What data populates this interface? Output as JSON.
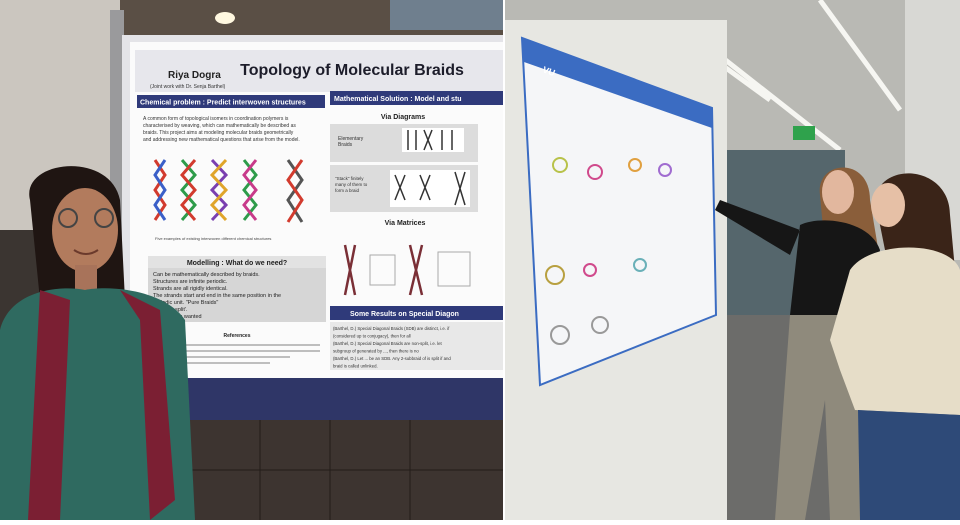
{
  "left_photo": {
    "poster": {
      "author": "Riya Dogra",
      "coauthor": "(Joint work with Dr. Senja Barthel)",
      "title": "Topology of Molecular Braids",
      "problem_heading": "Chemical problem : Predict interwoven structures",
      "solution_heading": "Mathematical Solution : Model and stu",
      "intro_lines": [
        "A common form of topological isomers in coordination polymers is",
        "characterised by weaving, which can mathematically be described as",
        "braids. This project aims at modeling molecular braids geometrically",
        "and addressing new mathematical questions that arise from the model."
      ],
      "braid_caption": "Five examples of existing interwoven different chemical structures",
      "via_diagrams": "Via Diagrams",
      "elementary_braids": [
        "Elementary",
        "Braids"
      ],
      "stack_text": [
        "\"Stack\" finitely",
        "many of them to",
        "form a braid"
      ],
      "via_matrices": "Via Matrices",
      "modelling_heading": "Modelling : What do we need?",
      "modelling_points": [
        "Can be mathematically described by braids.",
        "Structures are infinite periodic.",
        "Strands are all rigidly identical.",
        "The strands start and end in the same position in the",
        "periodic unit. \"Pure Braids\"",
        "Are 'non-split'.",
        "symmetry is wanted"
      ],
      "references_heading": "References",
      "results_heading": "Some Results on Special Diagon",
      "results_lines": [
        "(Barthel, D.) Special Diagonal Braids (SDB) are distinct, i.e. if",
        "(considered up to conjugacy), then for all",
        "(Barthel, D.) Special Diagonal Braids are non-split, i.e. let",
        "subgroup of generated by ..., then there is no",
        "(Barthel, D.) Let ... be an SDB. Any 2-subbraid of is split if and",
        "braid is called unlinked."
      ]
    }
  },
  "right_photo": {
    "poster": {
      "logo": "VU"
    }
  }
}
